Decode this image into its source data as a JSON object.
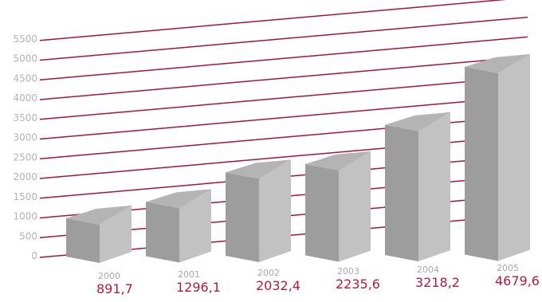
{
  "chart_data": {
    "type": "bar",
    "title": "",
    "xlabel": "",
    "ylabel": "",
    "categories": [
      "2000",
      "2001",
      "2002",
      "2003",
      "2004",
      "2005"
    ],
    "values": [
      891.7,
      1296.1,
      2032.4,
      2235.6,
      3218.2,
      4679.6
    ],
    "value_labels": [
      "891,7",
      "1296,1",
      "2032,4",
      "2235,6",
      "3218,2",
      "4679,6"
    ],
    "yticks": [
      "0",
      "500",
      "1000",
      "1500",
      "2000",
      "2500",
      "3000",
      "3500",
      "4000",
      "4500",
      "5000",
      "5500"
    ],
    "ylim": [
      0,
      5500
    ],
    "grid": true,
    "legend": "none",
    "colors": {
      "gridline": "#a8143a",
      "bar_front": "#9d9d9d",
      "bar_side": "#c2c2c2",
      "bar_top": "#b4b4b4",
      "value_text": "#b01c3c",
      "year_text": "#a8a8a8",
      "tick_text": "#b3b3b3"
    }
  }
}
